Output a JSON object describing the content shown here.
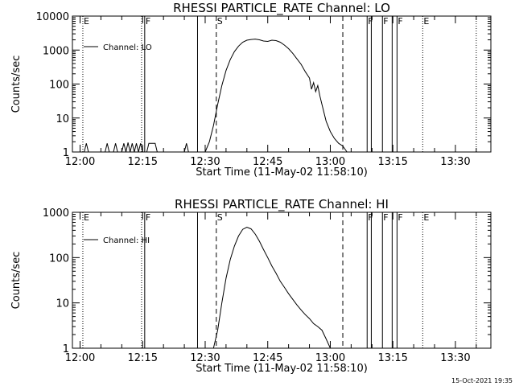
{
  "stamp": "15-Oct-2021 19:35",
  "chart_data": [
    {
      "type": "line",
      "title": "RHESSI PARTICLE_RATE Channel: LO",
      "xlabel": "Start Time (11-May-02 11:58:10)",
      "ylabel": "Counts/sec",
      "yscale": "log",
      "ylim": [
        1,
        10000
      ],
      "xlim": [
        "11:58:10",
        "13:38:30"
      ],
      "grid": false,
      "legend_position": "top-left",
      "x_ticks": [
        "12:00",
        "12:15",
        "12:30",
        "12:45",
        "13:00",
        "13:15",
        "13:30"
      ],
      "y_ticks": [
        "1",
        "10",
        "100",
        "1000",
        "10000"
      ],
      "series": [
        {
          "name": "Channel: LO",
          "color": "#000000",
          "x": [
            "11:59:00",
            "12:01:00",
            "12:01:30",
            "12:02:00",
            "12:06:00",
            "12:06:30",
            "12:07:00",
            "12:08:00",
            "12:08:30",
            "12:09:00",
            "12:10:00",
            "12:10:30",
            "12:11:00",
            "12:11:30",
            "12:12:00",
            "12:12:30",
            "12:13:00",
            "12:13:30",
            "12:14:00",
            "12:14:30",
            "12:15:00",
            "12:16:00",
            "12:16:30",
            "12:18:00",
            "12:18:30",
            "12:25:00",
            "12:25:30",
            "12:26:00",
            "12:30:00",
            "12:31:00",
            "12:32:00",
            "12:33:00",
            "12:34:00",
            "12:35:00",
            "12:36:00",
            "12:37:00",
            "12:38:00",
            "12:39:00",
            "12:40:00",
            "12:41:00",
            "12:42:00",
            "12:43:00",
            "12:44:00",
            "12:45:00",
            "12:46:00",
            "12:47:00",
            "12:48:00",
            "12:49:00",
            "12:50:00",
            "12:51:00",
            "12:52:00",
            "12:53:00",
            "12:54:00",
            "12:55:00",
            "12:55:30",
            "12:56:00",
            "12:56:30",
            "12:57:00",
            "12:57:30",
            "12:58:00",
            "12:59:00",
            "13:00:00",
            "13:01:00",
            "13:02:00",
            "13:03:00",
            "13:04:00"
          ],
          "y": [
            1,
            1,
            1.8,
            1,
            1,
            1.8,
            1,
            1,
            1.8,
            1,
            1,
            1.8,
            1,
            1.9,
            1,
            1.8,
            1,
            1.8,
            1,
            1.8,
            1,
            1,
            1.8,
            1.8,
            1,
            1,
            1.8,
            1,
            1,
            2,
            6,
            25,
            90,
            250,
            520,
            900,
            1300,
            1700,
            1950,
            2050,
            2100,
            2000,
            1850,
            1800,
            1950,
            1900,
            1700,
            1400,
            1100,
            800,
            550,
            380,
            230,
            150,
            70,
            110,
            60,
            90,
            45,
            25,
            8,
            4,
            2.5,
            1.8,
            1.5,
            1
          ]
        }
      ],
      "annotations": [
        {
          "label": "E",
          "time": "12:00:40",
          "style": "dotted"
        },
        {
          "label": "F",
          "time": "12:15:30",
          "style": "solid"
        },
        {
          "label": "",
          "time": "12:14:45",
          "style": "dotted"
        },
        {
          "label": "",
          "time": "12:28:10",
          "style": "solid"
        },
        {
          "label": "S",
          "time": "12:32:40",
          "style": "dashed"
        },
        {
          "label": "",
          "time": "13:03:00",
          "style": "dashed"
        },
        {
          "label": "F",
          "time": "13:08:50",
          "style": "solid"
        },
        {
          "label": "",
          "time": "13:09:50",
          "style": "solid"
        },
        {
          "label": "F",
          "time": "13:12:30",
          "style": "solid"
        },
        {
          "label": "",
          "time": "13:14:50",
          "style": "solid"
        },
        {
          "label": "F",
          "time": "13:16:00",
          "style": "solid"
        },
        {
          "label": "E",
          "time": "13:22:10",
          "style": "dotted"
        },
        {
          "label": "",
          "time": "13:35:00",
          "style": "dotted"
        }
      ]
    },
    {
      "type": "line",
      "title": "RHESSI PARTICLE_RATE Channel: HI",
      "xlabel": "Start Time (11-May-02 11:58:10)",
      "ylabel": "Counts/sec",
      "yscale": "log",
      "ylim": [
        1,
        1000
      ],
      "xlim": [
        "11:58:10",
        "13:38:30"
      ],
      "grid": false,
      "legend_position": "top-left",
      "x_ticks": [
        "12:00",
        "12:15",
        "12:30",
        "12:45",
        "13:00",
        "13:15",
        "13:30"
      ],
      "y_ticks": [
        "1",
        "10",
        "100",
        "1000"
      ],
      "series": [
        {
          "name": "Channel: HI",
          "color": "#000000",
          "x": [
            "12:32:00",
            "12:33:00",
            "12:34:00",
            "12:35:00",
            "12:36:00",
            "12:37:00",
            "12:38:00",
            "12:39:00",
            "12:40:00",
            "12:41:00",
            "12:42:00",
            "12:43:00",
            "12:44:00",
            "12:45:00",
            "12:46:00",
            "12:47:00",
            "12:48:00",
            "12:49:00",
            "12:50:00",
            "12:51:00",
            "12:52:00",
            "12:53:00",
            "12:54:00",
            "12:55:00",
            "12:56:00",
            "12:57:00",
            "12:58:00",
            "12:59:00",
            "13:00:00"
          ],
          "y": [
            1,
            2.5,
            10,
            35,
            90,
            180,
            300,
            420,
            470,
            430,
            330,
            230,
            150,
            100,
            65,
            45,
            30,
            22,
            16,
            12,
            9,
            7,
            5.5,
            4.5,
            3.5,
            3,
            2.5,
            1.6,
            1
          ]
        }
      ],
      "annotations": [
        {
          "label": "E",
          "time": "12:00:40",
          "style": "dotted"
        },
        {
          "label": "F",
          "time": "12:15:30",
          "style": "solid"
        },
        {
          "label": "",
          "time": "12:14:45",
          "style": "dotted"
        },
        {
          "label": "",
          "time": "12:28:10",
          "style": "solid"
        },
        {
          "label": "S",
          "time": "12:32:40",
          "style": "dashed"
        },
        {
          "label": "",
          "time": "13:03:00",
          "style": "dashed"
        },
        {
          "label": "F",
          "time": "13:08:50",
          "style": "solid"
        },
        {
          "label": "",
          "time": "13:09:50",
          "style": "solid"
        },
        {
          "label": "F",
          "time": "13:12:30",
          "style": "solid"
        },
        {
          "label": "",
          "time": "13:14:50",
          "style": "solid"
        },
        {
          "label": "F",
          "time": "13:16:00",
          "style": "solid"
        },
        {
          "label": "E",
          "time": "13:22:10",
          "style": "dotted"
        },
        {
          "label": "",
          "time": "13:35:00",
          "style": "dotted"
        }
      ]
    }
  ]
}
